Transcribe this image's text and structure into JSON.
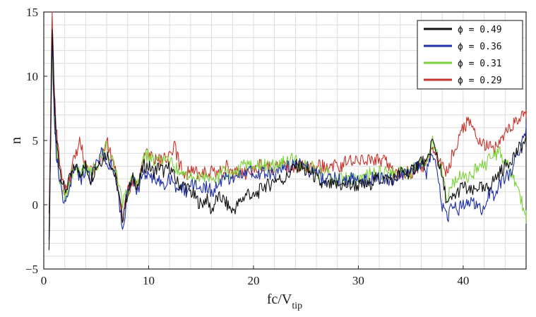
{
  "chart_data": {
    "type": "line",
    "title": "",
    "xlabel": "fc/V",
    "xlabel_sub": "tip",
    "ylabel": "n",
    "xlim": [
      0,
      46
    ],
    "ylim": [
      -5,
      15
    ],
    "xticks": [
      0,
      10,
      20,
      30,
      40
    ],
    "yticks": [
      -5,
      0,
      5,
      10,
      15
    ],
    "grid": true,
    "legend_position": "top-right",
    "series": [
      {
        "name": "ϕ = 0.49",
        "color": "#111111",
        "x": [
          0.5,
          0.8,
          1,
          1.2,
          1.5,
          2,
          2.5,
          3,
          3.5,
          4,
          4.5,
          5,
          5.5,
          6,
          6.5,
          7,
          7.5,
          8,
          8.5,
          9,
          9.5,
          10,
          10.5,
          11,
          11.5,
          12,
          12.5,
          13,
          13.5,
          14,
          14.5,
          15,
          15.5,
          16,
          16.5,
          17,
          17.5,
          18,
          18.5,
          19,
          19.5,
          20,
          20.5,
          21,
          21.5,
          22,
          22.5,
          23,
          23.5,
          24,
          24.5,
          25,
          25.5,
          26,
          26.5,
          27,
          27.5,
          28,
          28.5,
          29,
          29.5,
          30,
          30.5,
          31,
          31.5,
          32,
          32.5,
          33,
          33.5,
          34,
          34.5,
          35,
          35.5,
          36,
          36.5,
          37,
          37.5,
          38,
          38.5,
          39,
          39.5,
          40,
          40.5,
          41,
          41.5,
          42,
          42.5,
          43,
          43.5,
          44,
          44.5,
          45,
          45.5,
          46
        ],
        "y": [
          -4,
          14,
          8,
          5,
          3,
          1,
          2,
          3,
          2.5,
          3,
          2,
          3,
          3.5,
          4,
          3,
          1.5,
          -1,
          1,
          2,
          1.5,
          3,
          3,
          2.5,
          3,
          2.5,
          3,
          2,
          1.5,
          1.5,
          1,
          0.5,
          0,
          0.5,
          -0.5,
          0.5,
          0.5,
          0,
          -0.5,
          0,
          0.5,
          1,
          0.5,
          1,
          1.5,
          1.5,
          2,
          2,
          2,
          2.5,
          3,
          3,
          2.5,
          2.5,
          2,
          1.5,
          1.5,
          1.5,
          1.5,
          1.5,
          1.5,
          1.5,
          1.5,
          1.5,
          1.5,
          2,
          2,
          2,
          2,
          2,
          2.5,
          2.5,
          2.5,
          3,
          3.5,
          3,
          5,
          4,
          2,
          0,
          0.5,
          1,
          1.5,
          1,
          1,
          1.5,
          1,
          1.5,
          2,
          2.5,
          3,
          3.5,
          4,
          4.5,
          5
        ]
      },
      {
        "name": "ϕ = 0.36",
        "color": "#1f2fa8",
        "x": [
          0.5,
          0.8,
          1,
          1.2,
          1.5,
          2,
          2.5,
          3,
          3.5,
          4,
          4.5,
          5,
          5.5,
          6,
          6.5,
          7,
          7.5,
          8,
          8.5,
          9,
          9.5,
          10,
          10.5,
          11,
          11.5,
          12,
          12.5,
          13,
          13.5,
          14,
          14.5,
          15,
          15.5,
          16,
          16.5,
          17,
          17.5,
          18,
          18.5,
          19,
          19.5,
          20,
          20.5,
          21,
          21.5,
          22,
          22.5,
          23,
          23.5,
          24,
          24.5,
          25,
          25.5,
          26,
          26.5,
          27,
          27.5,
          28,
          28.5,
          29,
          29.5,
          30,
          30.5,
          31,
          31.5,
          32,
          32.5,
          33,
          33.5,
          34,
          34.5,
          35,
          35.5,
          36,
          36.5,
          37,
          37.5,
          38,
          38.5,
          39,
          39.5,
          40,
          40.5,
          41,
          41.5,
          42,
          42.5,
          43,
          43.5,
          44,
          44.5,
          45,
          45.5,
          46
        ],
        "y": [
          -3,
          13,
          7,
          4,
          2,
          0,
          1.5,
          3,
          2,
          2.5,
          2,
          3,
          4,
          3.5,
          3,
          1.5,
          -2,
          1,
          2,
          1,
          2.5,
          2.5,
          2,
          2,
          1.5,
          2,
          1.5,
          1.5,
          1,
          1.5,
          1.5,
          1,
          1.5,
          1,
          1.5,
          2,
          2,
          2,
          2,
          2.5,
          2.5,
          2.5,
          2.5,
          2.5,
          2.5,
          2.5,
          2.5,
          3,
          3,
          3.5,
          3,
          3,
          2.5,
          2.5,
          2,
          2,
          2,
          2,
          2,
          2,
          2,
          2,
          2,
          2,
          2,
          2,
          2,
          2,
          2,
          2.5,
          2.5,
          2.5,
          3,
          3,
          2.5,
          4,
          2.5,
          0,
          -1,
          0,
          -0.5,
          0,
          0.5,
          0,
          -0.5,
          0,
          1,
          0.5,
          1.5,
          2,
          2.5,
          3.5,
          4.5,
          6
        ]
      },
      {
        "name": "ϕ = 0.31",
        "color": "#7dd23a",
        "x": [
          0.5,
          0.8,
          1,
          1.2,
          1.5,
          2,
          2.5,
          3,
          3.5,
          4,
          4.5,
          5,
          5.5,
          6,
          6.5,
          7,
          7.5,
          8,
          8.5,
          9,
          9.5,
          10,
          10.5,
          11,
          11.5,
          12,
          12.5,
          13,
          13.5,
          14,
          14.5,
          15,
          15.5,
          16,
          16.5,
          17,
          17.5,
          18,
          18.5,
          19,
          19.5,
          20,
          20.5,
          21,
          21.5,
          22,
          22.5,
          23,
          23.5,
          24,
          24.5,
          25,
          25.5,
          26,
          26.5,
          27,
          27.5,
          28,
          28.5,
          29,
          29.5,
          30,
          30.5,
          31,
          31.5,
          32,
          32.5,
          33,
          33.5,
          34,
          34.5,
          35,
          35.5,
          36,
          36.5,
          37,
          37.5,
          38,
          38.5,
          39,
          39.5,
          40,
          40.5,
          41,
          41.5,
          42,
          42.5,
          43,
          43.5,
          44,
          44.5,
          45,
          45.5,
          46
        ],
        "y": [
          -2,
          12,
          7,
          4.5,
          2,
          0.5,
          2,
          3,
          2.5,
          3,
          2.5,
          3,
          4,
          4.5,
          3.5,
          2,
          0,
          1,
          2,
          1.5,
          3.5,
          4,
          3.5,
          3.5,
          3.5,
          3.5,
          3,
          2.5,
          2.5,
          2.5,
          2,
          2,
          2,
          2,
          2,
          2.5,
          2.5,
          2.5,
          2.5,
          3,
          3,
          3,
          3,
          3,
          3,
          3,
          3,
          3.5,
          3.5,
          3.5,
          3,
          3,
          3,
          2.5,
          2.5,
          2.5,
          2,
          2,
          2,
          2,
          2,
          2,
          2,
          2.5,
          2.5,
          2.5,
          2.5,
          2.5,
          2.5,
          2.5,
          2.5,
          2.5,
          3,
          3,
          3,
          5,
          4,
          2.5,
          0.5,
          1.5,
          2,
          2.5,
          2,
          2.5,
          3,
          3,
          3.5,
          4,
          4,
          3.5,
          2.5,
          1.5,
          0.5,
          -1
        ]
      },
      {
        "name": "ϕ = 0.29",
        "color": "#c8332b",
        "x": [
          0.5,
          0.8,
          1,
          1.2,
          1.5,
          2,
          2.5,
          3,
          3.5,
          4,
          4.5,
          5,
          5.5,
          6,
          6.5,
          7,
          7.5,
          8,
          8.5,
          9,
          9.5,
          10,
          10.5,
          11,
          11.5,
          12,
          12.5,
          13,
          13.5,
          14,
          14.5,
          15,
          15.5,
          16,
          16.5,
          17,
          17.5,
          18,
          18.5,
          19,
          19.5,
          20,
          20.5,
          21,
          21.5,
          22,
          22.5,
          23,
          23.5,
          24,
          24.5,
          25,
          25.5,
          26,
          26.5,
          27,
          27.5,
          28,
          28.5,
          29,
          29.5,
          30,
          30.5,
          31,
          31.5,
          32,
          32.5,
          33,
          33.5,
          34,
          34.5,
          35,
          35.5,
          36,
          36.5,
          37,
          37.5,
          38,
          38.5,
          39,
          39.5,
          40,
          40.5,
          41,
          41.5,
          42,
          42.5,
          43,
          43.5,
          44,
          44.5,
          45,
          45.5,
          46
        ],
        "y": [
          -1,
          15,
          9,
          6,
          3,
          1,
          2,
          4,
          5,
          3,
          2.5,
          3,
          4,
          5,
          3.5,
          2,
          -1,
          1,
          2,
          1.5,
          3.5,
          4,
          3.5,
          3.5,
          3.5,
          4,
          4.5,
          3,
          2.5,
          2.5,
          2.5,
          2.5,
          2.5,
          2.5,
          2.5,
          2.5,
          3,
          2.5,
          2.5,
          2.5,
          2.5,
          2.5,
          3,
          3,
          3,
          3,
          3,
          3,
          3,
          3,
          3,
          3,
          3,
          3,
          3,
          3,
          3,
          3,
          3,
          3.5,
          3.5,
          3.5,
          3.5,
          3.5,
          3.5,
          3.5,
          3.5,
          3,
          2.5,
          2.5,
          2.5,
          2.5,
          3,
          3,
          3,
          4.5,
          3.5,
          3,
          2.5,
          4,
          5,
          6,
          6.5,
          6,
          5,
          4.5,
          4.5,
          4.5,
          5,
          5.5,
          6,
          6.5,
          7,
          7
        ]
      }
    ]
  }
}
